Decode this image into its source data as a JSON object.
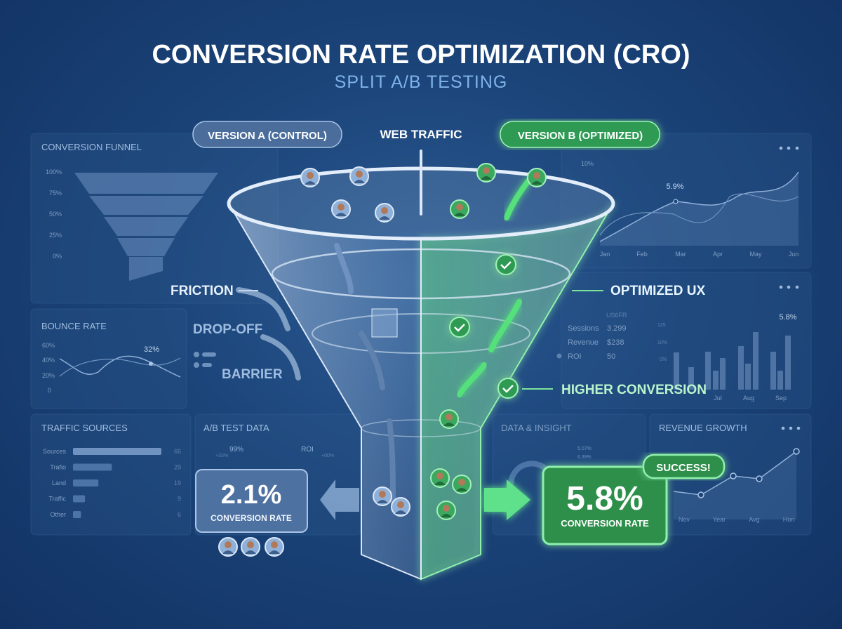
{
  "header": {
    "title": "CONVERSION RATE OPTIMIZATION (CRO)",
    "subtitle": "SPLIT A/B TESTING"
  },
  "pills": {
    "version_a": "VERSION A (CONTROL)",
    "web_traffic": "WEB TRAFFIC",
    "version_b": "VERSION B (OPTIMIZED)"
  },
  "labels": {
    "friction": "FRICTION",
    "drop_off": "DROP-OFF",
    "barrier": "BARRIER",
    "optimized_ux": "OPTIMIZED UX",
    "higher_conversion": "HIGHER CONVERSION"
  },
  "result_a": {
    "value": "2.1%",
    "label": "CONVERSION RATE"
  },
  "result_b": {
    "value": "5.8%",
    "label": "CONVERSION RATE",
    "badge": "SUCCESS!"
  },
  "colors": {
    "accent_green": "#3fd16b",
    "control_blue": "#5b7fae",
    "background": "#1b4479"
  },
  "panels": {
    "funnel": {
      "title": "CONVERSION FUNNEL",
      "ticks": [
        "100%",
        "75%",
        "50%",
        "25%",
        "0%"
      ]
    },
    "bounce": {
      "title": "BOUNCE RATE",
      "ticks": [
        "60%",
        "40%",
        "20%",
        "0"
      ],
      "callout": "32%"
    },
    "trend": {
      "ticks": [
        "10%"
      ],
      "months": [
        "Jan",
        "Feb",
        "Mar",
        "Apr",
        "May",
        "Jun"
      ],
      "callout": "5.9%"
    },
    "stats": {
      "header": "US6FR",
      "rows": [
        {
          "label": "Sessions",
          "value": "3.299"
        },
        {
          "label": "Revenue",
          "value": "$238"
        },
        {
          "label": "ROI",
          "value": "50"
        }
      ],
      "callout": "5.8%",
      "ticks": [
        "125",
        "10%",
        "0%"
      ],
      "months": [
        "Jul",
        "Aug",
        "Sep"
      ]
    },
    "traffic": {
      "title": "TRAFFIC SOURCES",
      "rows": [
        {
          "label": "Sources",
          "value": 66
        },
        {
          "label": "Trafio",
          "value": 29
        },
        {
          "label": "Land",
          "value": 19
        },
        {
          "label": "Traffic",
          "value": 9
        },
        {
          "label": "Other",
          "value": 6
        }
      ]
    },
    "abtest": {
      "title": "A/B TEST DATA",
      "left": "99%",
      "left_sub": "+33%",
      "right": "ROI",
      "right_sub": "+00%"
    },
    "insight": {
      "title": "DATA & INSIGHT",
      "items": [
        "5.07%",
        "6.39%"
      ]
    },
    "revenue": {
      "title": "REVENUE GROWTH",
      "xlabels": [
        "Nov",
        "Year",
        "Avg",
        "Hon"
      ]
    }
  }
}
